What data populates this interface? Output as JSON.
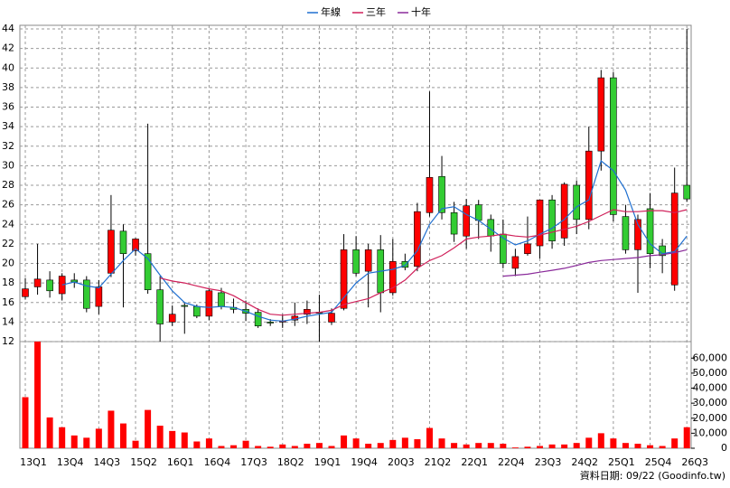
{
  "chart_data": [
    {
      "type": "candlestick",
      "legend": "top",
      "categories": [
        "13Q1",
        null,
        null,
        "13Q4",
        null,
        null,
        "14Q3",
        null,
        null,
        "15Q2",
        null,
        null,
        "16Q1",
        null,
        null,
        "16Q4",
        null,
        null,
        "17Q3",
        null,
        null,
        "18Q2",
        null,
        null,
        "19Q1",
        null,
        null,
        "19Q4",
        null,
        null,
        "20Q3",
        null,
        null,
        "21Q2",
        null,
        null,
        "22Q1",
        null,
        null,
        "22Q4",
        null,
        null,
        "23Q3",
        null,
        null,
        "24Q2",
        null,
        null,
        "25Q1",
        null,
        null,
        "25Q4",
        null,
        null,
        "26Q3"
      ],
      "up_color": "#ff0000",
      "down_color": "#33cc33",
      "open": [
        16.6,
        17.6,
        18.3,
        16.9,
        18.3,
        18.3,
        15.6,
        19,
        23.3,
        21.3,
        21,
        17.3,
        14,
        15.7,
        15.6,
        14.6,
        17,
        15.5,
        15.3,
        15,
        14,
        14,
        14.2,
        14.8,
        15,
        14,
        15.4,
        21.4,
        19.2,
        21.4,
        17,
        20.2,
        19.7,
        25.2,
        28.9,
        25.2,
        22.8,
        26,
        24.5,
        23,
        19.5,
        21,
        21.8,
        26.5,
        22.6,
        28,
        24.5,
        31.5,
        39,
        24.8,
        21.4,
        25.6,
        21.8,
        17.8,
        28
      ],
      "high": [
        18.5,
        22,
        19.2,
        19,
        19,
        18.7,
        18.3,
        27,
        24,
        22.6,
        34.3,
        18.7,
        15.7,
        16,
        15.8,
        17.4,
        17.5,
        16.4,
        16.2,
        15.4,
        14.3,
        14.8,
        16,
        16.2,
        16.8,
        15.4,
        23,
        22.8,
        22,
        22.9,
        22.5,
        21,
        26.2,
        37.6,
        31,
        26.3,
        26.6,
        26.5,
        25,
        24.5,
        21.5,
        24.8,
        26.5,
        27,
        28.3,
        28.5,
        34,
        39.8,
        39.6,
        26,
        25,
        27.2,
        22.5,
        29.8,
        44
      ],
      "low": [
        16.3,
        16.8,
        16.5,
        16.2,
        17.5,
        15,
        14.8,
        18.6,
        15.5,
        20.8,
        16.9,
        12,
        13.6,
        12.8,
        14.4,
        14.2,
        15.3,
        14.9,
        14.1,
        13.4,
        13.6,
        13.4,
        13.6,
        13.8,
        12,
        13.7,
        15.2,
        18.7,
        15.5,
        15,
        16.7,
        19.3,
        19.2,
        24.8,
        24.5,
        22.2,
        21.5,
        22.5,
        21.2,
        19.5,
        18.7,
        20.8,
        20.5,
        21.5,
        21.8,
        23,
        23.5,
        29.5,
        24.3,
        21,
        17,
        19.5,
        19,
        17.2,
        26.3
      ],
      "close": [
        17.4,
        18.4,
        17.2,
        18.7,
        18.1,
        15.4,
        17.6,
        23.4,
        21,
        22.5,
        17.3,
        13.8,
        14.8,
        15.6,
        14.6,
        17.2,
        15.6,
        15.3,
        14.9,
        13.6,
        13.9,
        14.1,
        14.6,
        15.3,
        14.9,
        14.9,
        21.4,
        19,
        21.4,
        17,
        20.2,
        19.6,
        25.3,
        28.8,
        25.2,
        23,
        25.9,
        24.4,
        22.8,
        20,
        20.7,
        22,
        26.5,
        22.3,
        28.1,
        24.5,
        31.5,
        39,
        25,
        21.4,
        24.5,
        21,
        20.8,
        27.2,
        26.6
      ],
      "series": [
        {
          "name": "年線",
          "color": "#1f6fd0",
          "values": [
            null,
            null,
            null,
            17.8,
            18.1,
            17.7,
            17.5,
            18.9,
            20.3,
            21.5,
            20.5,
            18.8,
            17.2,
            16,
            15.6,
            15.5,
            15.6,
            15.5,
            15.1,
            14.6,
            14.2,
            14.1,
            14.3,
            14.6,
            14.8,
            15,
            16.5,
            18,
            19,
            19.2,
            19.4,
            19.8,
            21.3,
            24,
            25.6,
            25.8,
            25,
            24.4,
            23.5,
            22.6,
            21.9,
            22.3,
            23,
            23.6,
            24.5,
            25.8,
            26.5,
            30.5,
            29.5,
            27.5,
            24,
            22,
            21,
            21.2,
            22.8
          ]
        },
        {
          "name": "三年",
          "color": "#d0205a",
          "values": [
            null,
            null,
            null,
            null,
            null,
            null,
            null,
            null,
            null,
            null,
            null,
            18.5,
            18.2,
            18,
            17.7,
            17.4,
            17.2,
            16.7,
            16,
            15.3,
            14.8,
            14.7,
            14.8,
            14.9,
            15,
            15.2,
            15.8,
            16.1,
            16.4,
            17,
            17.5,
            18.3,
            19.5,
            20.3,
            20.8,
            21.6,
            22.5,
            22.7,
            22.8,
            23,
            22.8,
            22.7,
            22.9,
            23.2,
            23.5,
            23.8,
            24.3,
            24.9,
            25.5,
            25.3,
            25.3,
            25.4,
            25.4,
            25.2,
            25.5
          ]
        },
        {
          "name": "十年",
          "color": "#8a2a9a",
          "values": [
            null,
            null,
            null,
            null,
            null,
            null,
            null,
            null,
            null,
            null,
            null,
            null,
            null,
            null,
            null,
            null,
            null,
            null,
            null,
            null,
            null,
            null,
            null,
            null,
            null,
            null,
            null,
            null,
            null,
            null,
            null,
            null,
            null,
            null,
            null,
            null,
            null,
            null,
            null,
            18.7,
            18.8,
            18.9,
            19.1,
            19.3,
            19.5,
            19.8,
            20.1,
            20.3,
            20.4,
            20.5,
            20.6,
            20.8,
            20.9,
            21.1,
            21.4
          ]
        }
      ],
      "ylim": [
        12,
        44
      ],
      "yticks": [
        12,
        14,
        16,
        18,
        20,
        22,
        24,
        26,
        28,
        30,
        32,
        34,
        36,
        38,
        40,
        42,
        44
      ],
      "grid": true
    },
    {
      "type": "bar",
      "color": "#ff0000",
      "values": [
        34000,
        71000,
        20500,
        14000,
        8500,
        7000,
        13000,
        25000,
        16500,
        5000,
        25500,
        15000,
        11500,
        10500,
        4500,
        6500,
        1500,
        2000,
        5000,
        1500,
        1000,
        2500,
        1500,
        3000,
        3500,
        1500,
        8500,
        6500,
        3000,
        3500,
        5500,
        7000,
        6000,
        13500,
        6500,
        3500,
        2500,
        3500,
        3500,
        3000,
        500,
        1000,
        1500,
        2500,
        2500,
        3500,
        7000,
        10000,
        6500,
        3500,
        3000,
        2000,
        1500,
        6500,
        14000
      ],
      "ylim": [
        0,
        71000
      ],
      "yticks": [
        0,
        {
          "value": 10000,
          "label": "10,000"
        },
        {
          "value": 20000,
          "label": "20,000"
        },
        {
          "value": 30000,
          "label": "30,000"
        },
        {
          "value": 40000,
          "label": "40,000"
        },
        {
          "value": 50000,
          "label": "50,000"
        },
        {
          "value": 60000,
          "label": "60,000"
        }
      ],
      "note": "資料日期: 09/22 (Goodinfo.tw)"
    }
  ]
}
